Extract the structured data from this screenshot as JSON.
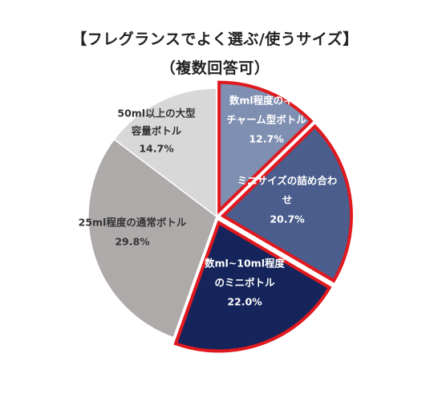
{
  "title": {
    "line1": "【フレグランスでよく選ぶ/使うサイズ】",
    "line2": "（複数回答可）"
  },
  "chart_data": {
    "type": "pie",
    "title": "【フレグランスでよく選ぶ/使うサイズ】（複数回答可）",
    "slices": [
      {
        "label_lines": [
          "数ml程度のキー",
          "チャーム型ボトル"
        ],
        "value": 12.7,
        "value_label": "12.7%",
        "color": "#7f8fb2",
        "highlight": true
      },
      {
        "label_lines": [
          "ミニサイズの詰め合わ",
          "せ"
        ],
        "value": 20.7,
        "value_label": "20.7%",
        "color": "#4a5d8d",
        "highlight": true
      },
      {
        "label_lines": [
          "数ml~10ml程度",
          "のミニボトル"
        ],
        "value": 22.0,
        "value_label": "22.0%",
        "color": "#15245a",
        "highlight": true
      },
      {
        "label_lines": [
          "25ml程度の通常ボトル"
        ],
        "value": 29.8,
        "value_label": "29.8%",
        "color": "#aeaaa9",
        "highlight": false
      },
      {
        "label_lines": [
          "50ml以上の大型",
          "容量ボトル"
        ],
        "value": 14.7,
        "value_label": "14.7%",
        "color": "#d9d8d8",
        "highlight": false
      }
    ],
    "highlight_color": "#e0191f",
    "start_angle": "12 o'clock",
    "direction": "clockwise"
  }
}
